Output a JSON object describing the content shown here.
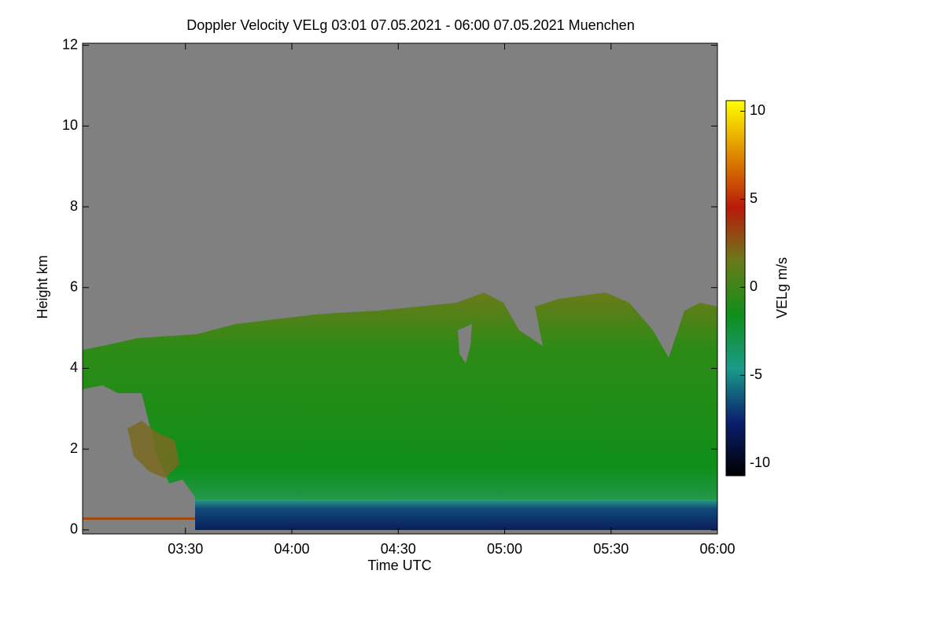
{
  "chart_data": {
    "type": "heatmap",
    "title": "Doppler Velocity VELg   03:01 07.05.2021 - 06:00 07.05.2021 Muenchen",
    "xlabel": "Time UTC",
    "ylabel": "Height km",
    "xlim": [
      3.0167,
      6.0
    ],
    "xticks": [
      {
        "value": 3.5,
        "label": "03:30"
      },
      {
        "value": 4.0,
        "label": "04:00"
      },
      {
        "value": 4.5,
        "label": "04:30"
      },
      {
        "value": 5.0,
        "label": "05:00"
      },
      {
        "value": 5.5,
        "label": "05:30"
      },
      {
        "value": 6.0,
        "label": "06:00"
      }
    ],
    "ylim": [
      -0.1,
      12.05
    ],
    "yticks": [
      0,
      2,
      4,
      6,
      8,
      10,
      12
    ],
    "colorbar_label": "VELg m/s",
    "clim": [
      -10.7,
      10.6
    ],
    "cticks": [
      -10,
      -5,
      0,
      5,
      10
    ],
    "colormap": [
      "#000000",
      "#0a1f6e",
      "#1a9a8a",
      "#0f8f1a",
      "#6a7a1a",
      "#b81a0a",
      "#e08a00",
      "#ffff00"
    ]
  }
}
